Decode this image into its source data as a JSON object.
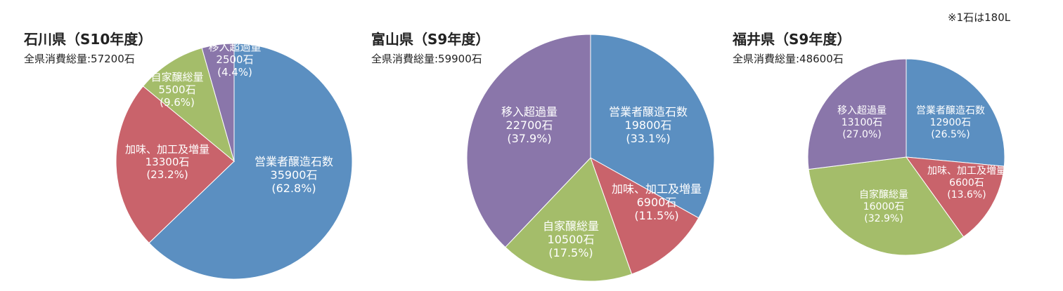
{
  "note": "※1石は180L",
  "colors": {
    "営業者醸造石数": "#5b8fc1",
    "加味、加工及増量": "#c9636b",
    "自家醸総量": "#a4bd6a",
    "移入超過量": "#8a76aa"
  },
  "chart_data": [
    {
      "type": "pie",
      "title": "石川県（S10年度）",
      "subtitle": "全県消費総量:57200石",
      "slices": [
        {
          "label": "営業者醸造石数",
          "amount": "35900石",
          "pct_text": "(62.8%)",
          "value": 62.8
        },
        {
          "label": "加味、加工及増量",
          "amount": "13300石",
          "pct_text": "(23.2%)",
          "value": 23.2
        },
        {
          "label": "自家醸総量",
          "amount": "5500石",
          "pct_text": "(9.6%)",
          "value": 9.6
        },
        {
          "label": "移入超過量",
          "amount": "2500石",
          "pct_text": "(4.4%)",
          "value": 4.4
        }
      ]
    },
    {
      "type": "pie",
      "title": "富山県（S9年度）",
      "subtitle": "全県消費総量:59900石",
      "slices": [
        {
          "label": "営業者醸造石数",
          "amount": "19800石",
          "pct_text": "(33.1%)",
          "value": 33.1
        },
        {
          "label": "加味、加工及増量",
          "amount": "6900石",
          "pct_text": "(11.5%)",
          "value": 11.5
        },
        {
          "label": "自家醸総量",
          "amount": "10500石",
          "pct_text": "(17.5%)",
          "value": 17.5
        },
        {
          "label": "移入超過量",
          "amount": "22700石",
          "pct_text": "(37.9%)",
          "value": 37.9
        }
      ]
    },
    {
      "type": "pie",
      "title": "福井県（S9年度）",
      "subtitle": "全県消費総量:48600石",
      "slices": [
        {
          "label": "営業者醸造石数",
          "amount": "12900石",
          "pct_text": "(26.5%)",
          "value": 26.5
        },
        {
          "label": "加味、加工及増量",
          "amount": "6600石",
          "pct_text": "(13.6%)",
          "value": 13.6
        },
        {
          "label": "自家醸総量",
          "amount": "16000石",
          "pct_text": "(32.9%)",
          "value": 32.9
        },
        {
          "label": "移入超過量",
          "amount": "13100石",
          "pct_text": "(27.0%)",
          "value": 27.0
        }
      ]
    }
  ]
}
